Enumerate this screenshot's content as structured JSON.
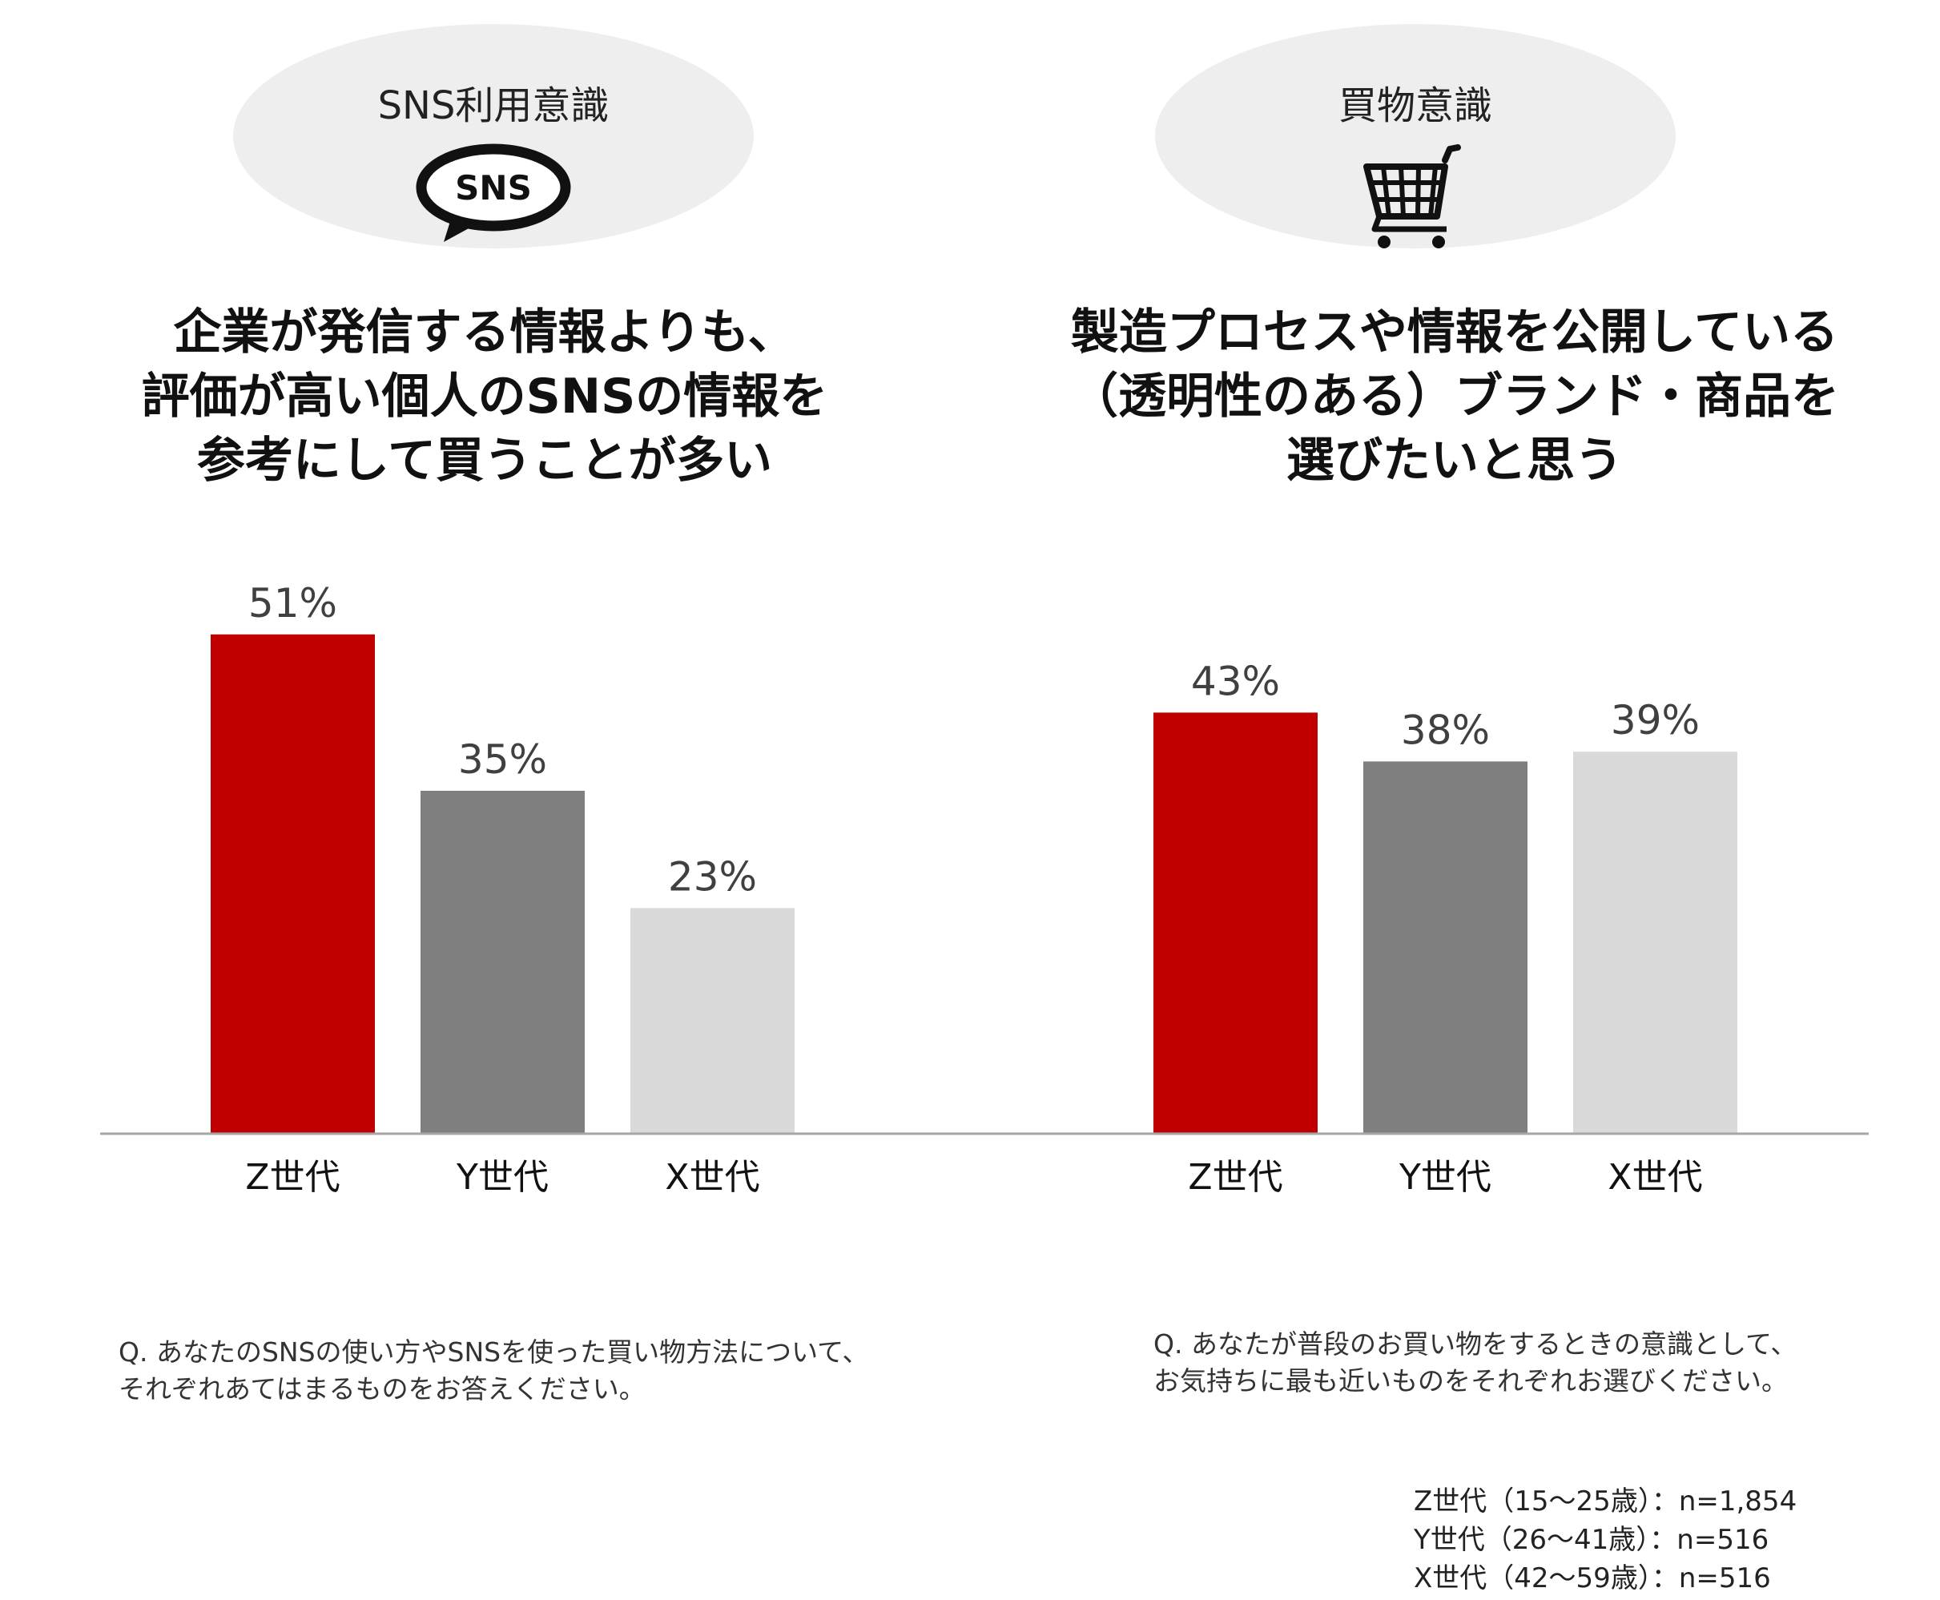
{
  "left_panel": {
    "bubble_label": "SNS利用意識",
    "icon_text": "SNS",
    "icon_name": "sns-speech-bubble-icon",
    "headline": [
      "企業が発信する情報よりも、",
      "評価が高い個人のSNSの情報を",
      "参考にして買うことが多い"
    ],
    "question": [
      "Q. あなたのSNSの使い方やSNSを使った買い物方法について、",
      "それぞれあてはまるものをお答えください。"
    ]
  },
  "right_panel": {
    "bubble_label": "買物意識",
    "icon_name": "shopping-cart-icon",
    "headline": [
      "製造プロセスや情報を公開している",
      "（透明性のある）ブランド・商品を",
      "選びたいと思う"
    ],
    "question": [
      "Q. あなたが普段のお買い物をするときの意識として、",
      "お気持ちに最も近いものをそれぞれお選びください。"
    ]
  },
  "samples": [
    {
      "label": "Z世代（15～25歳）",
      "n": "：n=1,854"
    },
    {
      "label": "Y世代（26～41歳）",
      "n": "：n=516"
    },
    {
      "label": "X世代（42～59歳）",
      "n": "：n=516"
    }
  ],
  "colors": {
    "z": "#c00000",
    "y": "#7f7f7f",
    "x": "#d9d9d9",
    "axis": "#a6a6a6",
    "bubble": "#eeeeee",
    "value_text": "#404040"
  },
  "chart_data": [
    {
      "type": "bar",
      "categories": [
        "Z世代",
        "Y世代",
        "X世代"
      ],
      "values": [
        51,
        35,
        23
      ],
      "value_labels": [
        "51%",
        "35%",
        "23%"
      ],
      "ylim": [
        0,
        60
      ],
      "grid": false
    },
    {
      "type": "bar",
      "categories": [
        "Z世代",
        "Y世代",
        "X世代"
      ],
      "values": [
        43,
        38,
        39
      ],
      "value_labels": [
        "43%",
        "38%",
        "39%"
      ],
      "ylim": [
        0,
        60
      ],
      "grid": false
    }
  ]
}
